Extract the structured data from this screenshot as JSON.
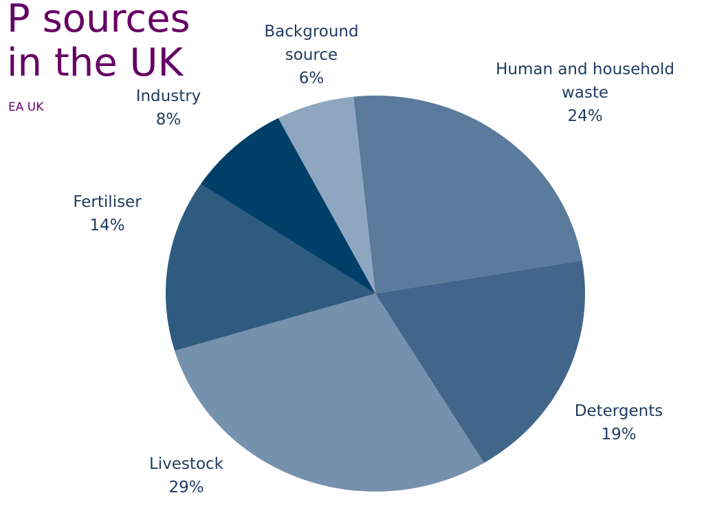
{
  "chart_data": {
    "type": "pie",
    "title": "P sources in the UK",
    "subtitle": "EA UK",
    "categories": [
      "Human and household waste",
      "Detergents",
      "Livestock",
      "Fertiliser",
      "Industry",
      "Background source"
    ],
    "values": [
      24,
      19,
      29,
      14,
      8,
      6
    ],
    "value_labels": [
      "24%",
      "19%",
      "29%",
      "14%",
      "8%",
      "6%"
    ],
    "colors": [
      "#5a7b9c",
      "#426689",
      "#7591ad",
      "#2f5b80",
      "#003f68",
      "#8fa6c0"
    ]
  }
}
